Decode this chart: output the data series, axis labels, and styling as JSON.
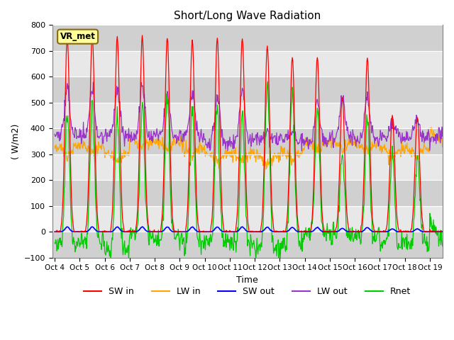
{
  "title": "Short/Long Wave Radiation",
  "xlabel": "Time",
  "ylabel": "( W/m2)",
  "ylim": [
    -100,
    800
  ],
  "yticks": [
    -100,
    0,
    100,
    200,
    300,
    400,
    500,
    600,
    700,
    800
  ],
  "colors": {
    "SW_in": "#FF0000",
    "LW_in": "#FFA500",
    "SW_out": "#0000FF",
    "LW_out": "#9933CC",
    "Rnet": "#00CC00"
  },
  "legend_labels": [
    "SW in",
    "LW in",
    "SW out",
    "LW out",
    "Rnet"
  ],
  "xtick_labels": [
    "Oct 4",
    "Oct 5",
    "Oct 6",
    "Oct 7",
    "Oct 8",
    "Oct 9",
    "Oct 10",
    "Oct 11",
    "Oct 12",
    "Oct 13",
    "Oct 14",
    "Oct 15",
    "Oct 16",
    "Oct 17",
    "Oct 18",
    "Oct 19"
  ],
  "station_label": "VR_met",
  "background_color": "#E0E0E0",
  "n_days": 16,
  "sw_peaks": [
    750,
    760,
    755,
    755,
    750,
    745,
    750,
    750,
    720,
    675,
    675,
    520,
    670,
    450,
    445,
    0
  ],
  "lw_in_base": [
    330,
    335,
    305,
    355,
    350,
    330,
    300,
    305,
    295,
    310,
    345,
    350,
    340,
    320,
    325,
    380
  ],
  "lw_out_night": [
    375,
    365,
    370,
    365,
    370,
    370,
    340,
    350,
    360,
    360,
    350,
    365,
    355,
    365,
    360,
    360
  ],
  "lw_out_day_peak": [
    545,
    545,
    555,
    560,
    515,
    535,
    515,
    545,
    385,
    385,
    500,
    520,
    510,
    425,
    440,
    385
  ]
}
